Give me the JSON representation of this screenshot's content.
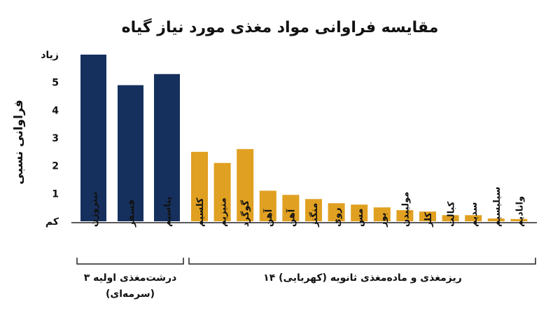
{
  "chart_data": {
    "type": "bar",
    "title": "مقایسه فراوانی مواد مغذی مورد نیاز گیاه",
    "ylabel": "فراوانی نسبی",
    "ylim": [
      0,
      6
    ],
    "y_ticks": [
      {
        "value": 0,
        "label": "کم"
      },
      {
        "value": 1,
        "label": "1"
      },
      {
        "value": 2,
        "label": "2"
      },
      {
        "value": 3,
        "label": "3"
      },
      {
        "value": 4,
        "label": "4"
      },
      {
        "value": 5,
        "label": "5"
      },
      {
        "value": 6,
        "label": "زیاد"
      }
    ],
    "categories": [
      "نیتروژن",
      "فسفر",
      "پتاسیم",
      "کلسیم",
      "منیزیم",
      "گوگرد",
      "آهن",
      "آهن",
      "منگنز",
      "روی",
      "مس",
      "بور",
      "مولیبدن",
      "کلر",
      "کبالت",
      "سدیم",
      "سیلیسیم",
      "وانادیم"
    ],
    "values": [
      6.0,
      4.9,
      5.3,
      2.5,
      2.1,
      2.6,
      1.1,
      0.95,
      0.8,
      0.65,
      0.6,
      0.5,
      0.4,
      0.35,
      0.22,
      0.22,
      0.1,
      0.08
    ],
    "colors": [
      "#16305e",
      "#16305e",
      "#16305e",
      "#e0a021",
      "#e0a021",
      "#e0a021",
      "#e0a021",
      "#e0a021",
      "#e0a021",
      "#e0a021",
      "#e0a021",
      "#e0a021",
      "#e0a021",
      "#e0a021",
      "#e0a021",
      "#e0a021",
      "#e0a021",
      "#e0a021"
    ],
    "groups": [
      {
        "line1": "۳ درشت‌مغذی اولیه",
        "line2": "(سرمه‌ای)"
      },
      {
        "line1": "۱۴ ریزمغذی و ماده‌مغذی ثانویه (کهربایی)",
        "line2": ""
      }
    ]
  }
}
